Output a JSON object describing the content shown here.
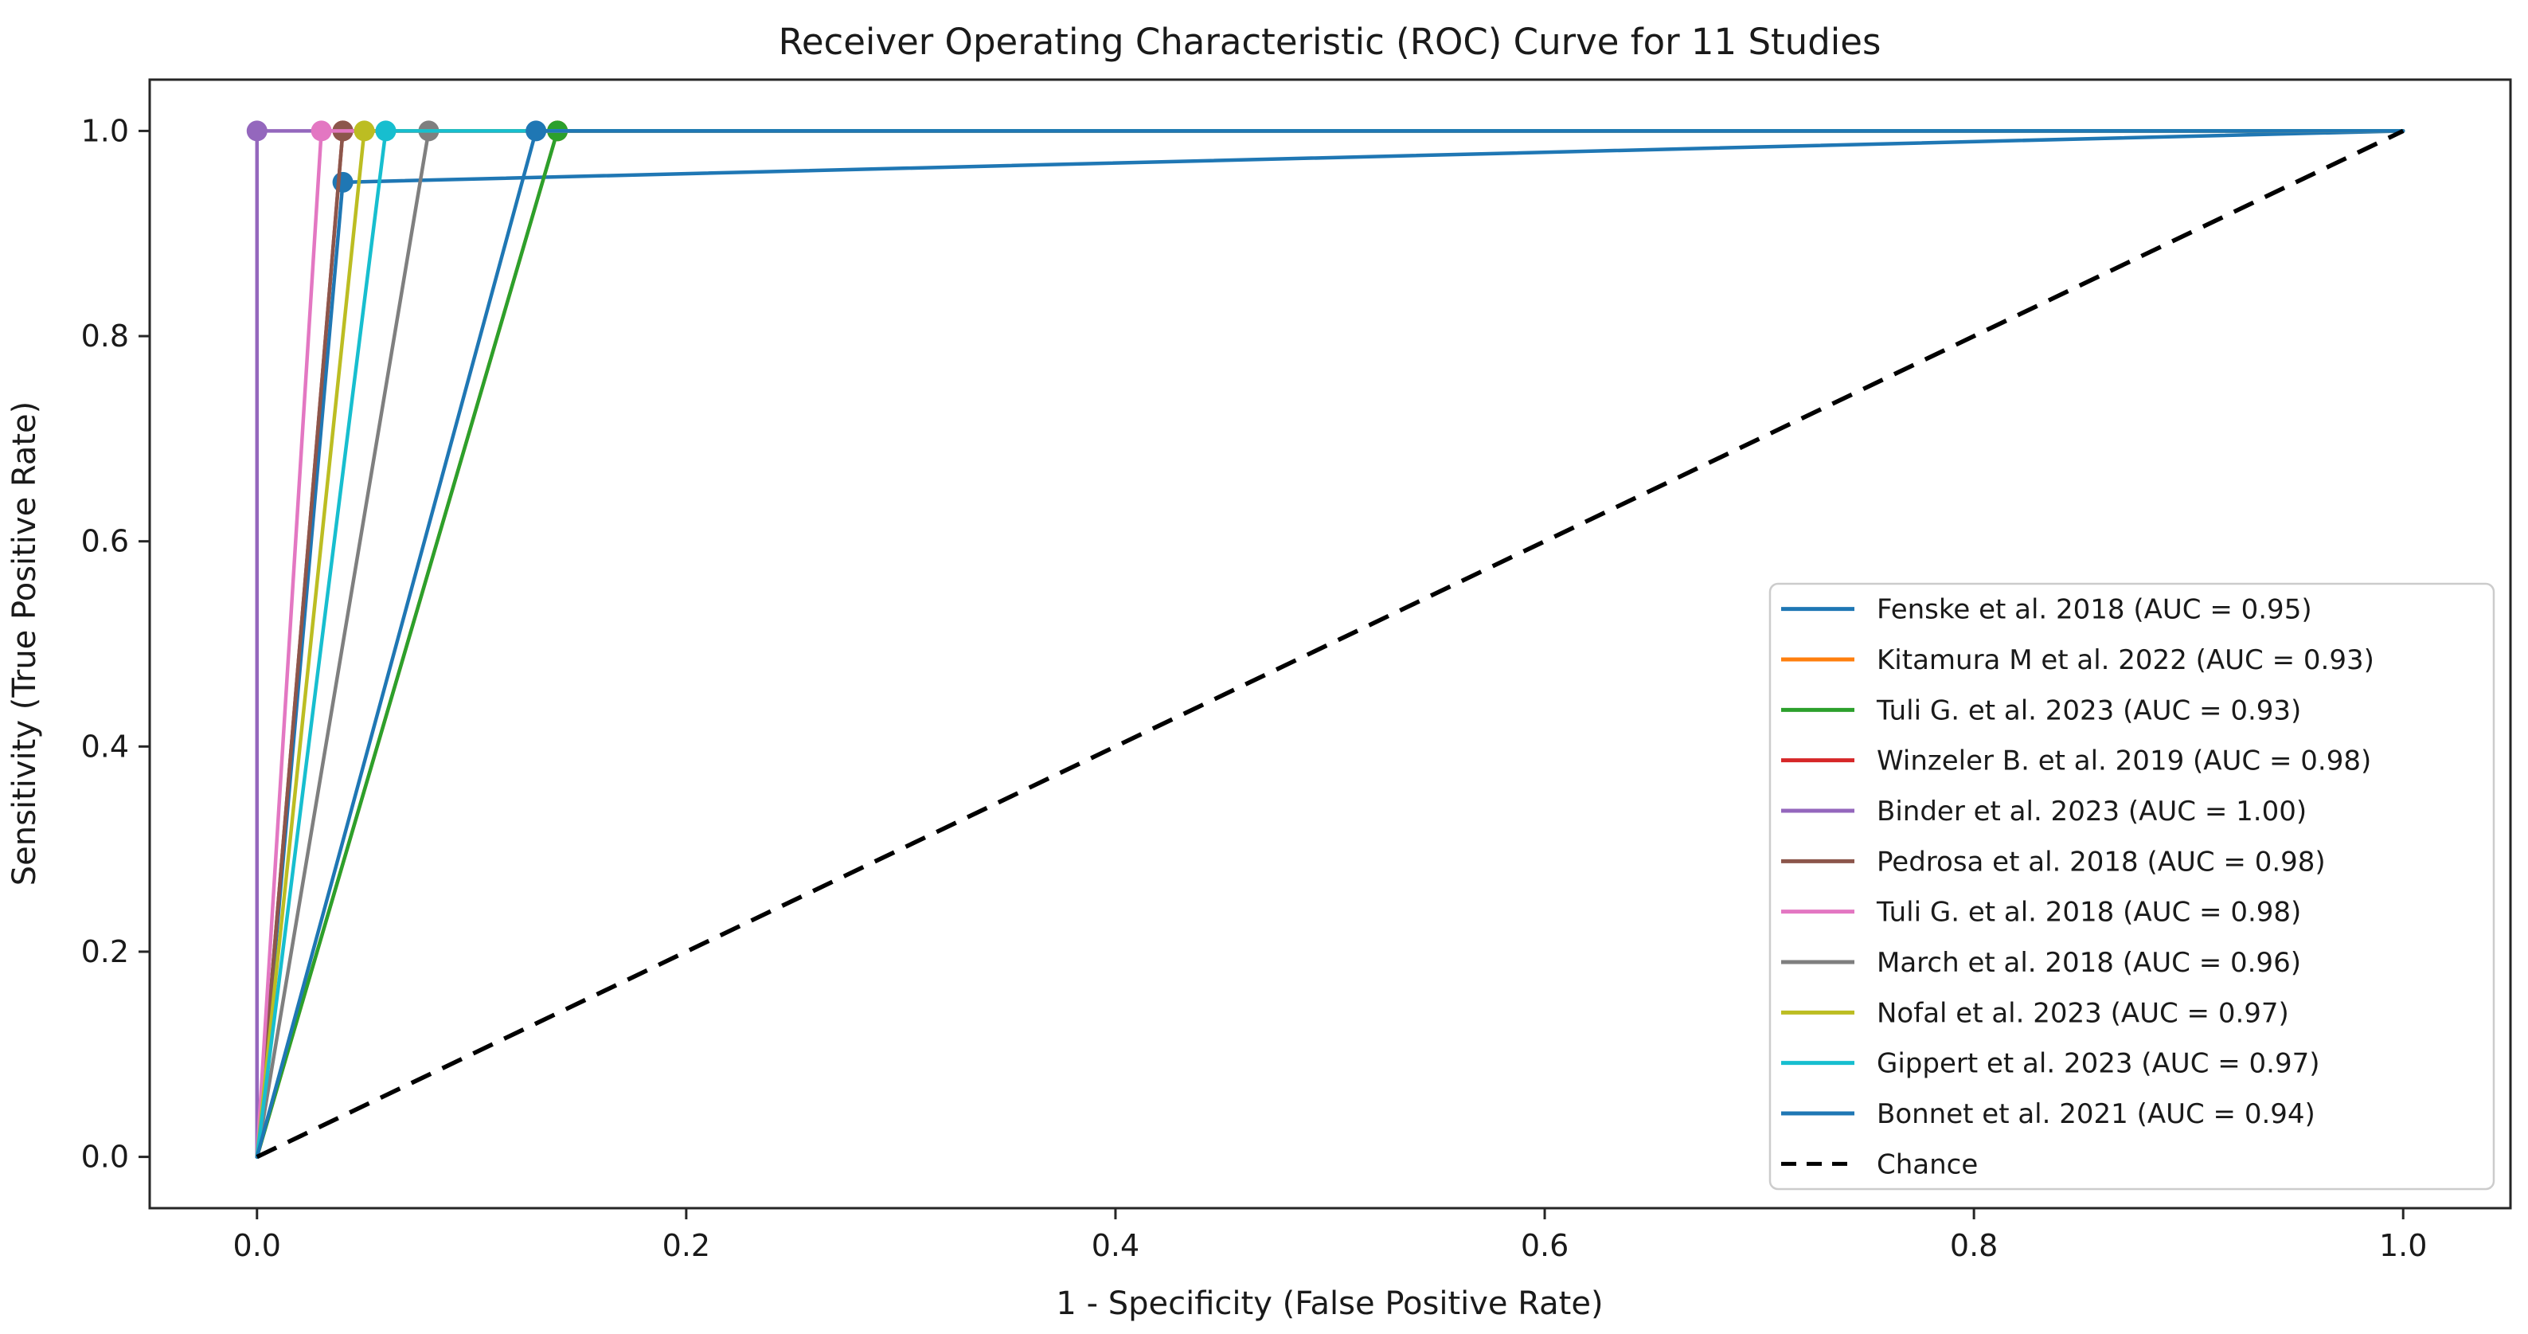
{
  "figure": {
    "background_color": "#ffffff",
    "spine_color": "#262626",
    "text_color": "#1a1a1a",
    "legend_border_color": "#cccccc",
    "legend_background_color": "#ffffff"
  },
  "chart_data": {
    "type": "line",
    "title": "Receiver Operating Characteristic (ROC) Curve for 11 Studies",
    "xlabel": "1 - Specificity (False Positive Rate)",
    "ylabel": "Sensitivity (True Positive Rate)",
    "xlim": [
      -0.05,
      1.05
    ],
    "ylim": [
      -0.05,
      1.05
    ],
    "x_ticks": [
      "0.0",
      "0.2",
      "0.4",
      "0.6",
      "0.8",
      "1.0"
    ],
    "y_ticks": [
      "0.0",
      "0.2",
      "0.4",
      "0.6",
      "0.8",
      "1.0"
    ],
    "grid": false,
    "legend_position": "lower right",
    "series": [
      {
        "name": "Fenske et al. 2018 (AUC = 0.95)",
        "auc": 0.95,
        "color": "#1f77b4",
        "style": "solid",
        "x": [
          0.0,
          0.04,
          1.0
        ],
        "y": [
          0.0,
          0.95,
          1.0
        ],
        "marker": "o",
        "marker_at": [
          0.04,
          0.95
        ]
      },
      {
        "name": "Kitamura M et al. 2022 (AUC = 0.93)",
        "auc": 0.93,
        "color": "#ff7f0e",
        "style": "solid",
        "x": [
          0.0,
          0.14,
          1.0
        ],
        "y": [
          0.0,
          1.0,
          1.0
        ],
        "marker": "o",
        "marker_at": [
          0.14,
          1.0
        ]
      },
      {
        "name": "Tuli G. et al. 2023 (AUC = 0.93)",
        "auc": 0.93,
        "color": "#2ca02c",
        "style": "solid",
        "x": [
          0.0,
          0.14,
          1.0
        ],
        "y": [
          0.0,
          1.0,
          1.0
        ],
        "marker": "o",
        "marker_at": [
          0.14,
          1.0
        ]
      },
      {
        "name": "Winzeler B. et al. 2019 (AUC = 0.98)",
        "auc": 0.98,
        "color": "#d62728",
        "style": "solid",
        "x": [
          0.0,
          0.04,
          1.0
        ],
        "y": [
          0.0,
          1.0,
          1.0
        ],
        "marker": "o",
        "marker_at": [
          0.04,
          1.0
        ]
      },
      {
        "name": "Binder et al. 2023 (AUC = 1.00)",
        "auc": 1.0,
        "color": "#9467bd",
        "style": "solid",
        "x": [
          0.0,
          0.0,
          1.0
        ],
        "y": [
          0.0,
          1.0,
          1.0
        ],
        "marker": "o",
        "marker_at": [
          0.0,
          1.0
        ]
      },
      {
        "name": "Pedrosa et al. 2018 (AUC = 0.98)",
        "auc": 0.98,
        "color": "#8c564b",
        "style": "solid",
        "x": [
          0.0,
          0.04,
          1.0
        ],
        "y": [
          0.0,
          1.0,
          1.0
        ],
        "marker": "o",
        "marker_at": [
          0.04,
          1.0
        ]
      },
      {
        "name": "Tuli G. et al. 2018 (AUC = 0.98)",
        "auc": 0.98,
        "color": "#e377c2",
        "style": "solid",
        "x": [
          0.0,
          0.03,
          1.0
        ],
        "y": [
          0.0,
          1.0,
          1.0
        ],
        "marker": "o",
        "marker_at": [
          0.03,
          1.0
        ]
      },
      {
        "name": "March et al. 2018 (AUC = 0.96)",
        "auc": 0.96,
        "color": "#7f7f7f",
        "style": "solid",
        "x": [
          0.0,
          0.08,
          1.0
        ],
        "y": [
          0.0,
          1.0,
          1.0
        ],
        "marker": "o",
        "marker_at": [
          0.08,
          1.0
        ]
      },
      {
        "name": "Nofal et al. 2023 (AUC = 0.97)",
        "auc": 0.97,
        "color": "#bcbd22",
        "style": "solid",
        "x": [
          0.0,
          0.05,
          1.0
        ],
        "y": [
          0.0,
          1.0,
          1.0
        ],
        "marker": "o",
        "marker_at": [
          0.05,
          1.0
        ]
      },
      {
        "name": "Gippert et al. 2023 (AUC = 0.97)",
        "auc": 0.97,
        "color": "#17becf",
        "style": "solid",
        "x": [
          0.0,
          0.06,
          1.0
        ],
        "y": [
          0.0,
          1.0,
          1.0
        ],
        "marker": "o",
        "marker_at": [
          0.06,
          1.0
        ]
      },
      {
        "name": "Bonnet et al. 2021 (AUC = 0.94)",
        "auc": 0.94,
        "color": "#1f77b4",
        "style": "solid",
        "x": [
          0.0,
          0.13,
          1.0
        ],
        "y": [
          0.0,
          1.0,
          1.0
        ],
        "marker": "o",
        "marker_at": [
          0.13,
          1.0
        ]
      }
    ],
    "reference_line": {
      "name": "Chance",
      "color": "#000000",
      "style": "dashed",
      "x": [
        0.0,
        1.0
      ],
      "y": [
        0.0,
        1.0
      ]
    }
  }
}
